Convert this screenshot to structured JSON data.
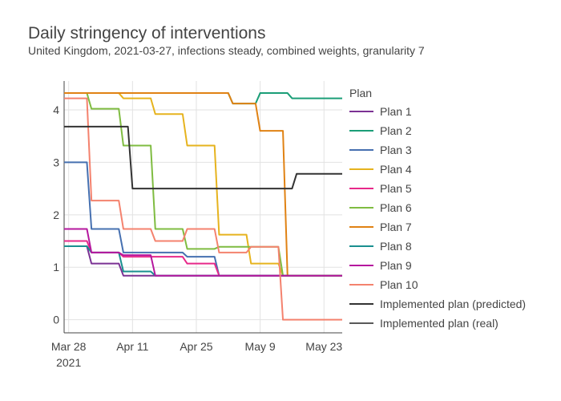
{
  "chart_data": {
    "type": "line",
    "title": "Daily stringency of interventions",
    "subtitle": "United Kingdom, 2021-03-27, infections steady, combined weights, granularity 7",
    "legend_title": "Plan",
    "legend_position": "right",
    "xlabel": "",
    "ylabel": "",
    "x_ticks": [
      {
        "date": "2021-03-28",
        "label": "Mar 28",
        "sublabel": "2021"
      },
      {
        "date": "2021-04-11",
        "label": "Apr 11",
        "sublabel": ""
      },
      {
        "date": "2021-04-25",
        "label": "Apr 25",
        "sublabel": ""
      },
      {
        "date": "2021-05-09",
        "label": "May 9",
        "sublabel": ""
      },
      {
        "date": "2021-05-23",
        "label": "May 23",
        "sublabel": ""
      }
    ],
    "xlim": [
      "2021-03-27",
      "2021-05-27"
    ],
    "y_ticks": [
      0,
      1,
      2,
      3,
      4
    ],
    "ylim": [
      -0.25,
      4.55
    ],
    "grid": true,
    "series": [
      {
        "name": "Plan 1",
        "color": "#7b3294",
        "points": [
          [
            "2021-03-27",
            1.4
          ],
          [
            "2021-04-01",
            1.4
          ],
          [
            "2021-04-02",
            1.07
          ],
          [
            "2021-04-08",
            1.07
          ],
          [
            "2021-04-09",
            0.84
          ],
          [
            "2021-04-15",
            0.84
          ],
          [
            "2021-04-16",
            0.84
          ],
          [
            "2021-05-27",
            0.84
          ]
        ]
      },
      {
        "name": "Plan 2",
        "color": "#1b9e77",
        "points": [
          [
            "2021-03-27",
            4.32
          ],
          [
            "2021-05-02",
            4.32
          ],
          [
            "2021-05-03",
            4.12
          ],
          [
            "2021-05-08",
            4.12
          ],
          [
            "2021-05-09",
            4.32
          ],
          [
            "2021-05-15",
            4.32
          ],
          [
            "2021-05-16",
            4.22
          ],
          [
            "2021-05-27",
            4.22
          ]
        ]
      },
      {
        "name": "Plan 3",
        "color": "#4670b0",
        "points": [
          [
            "2021-03-27",
            3.0
          ],
          [
            "2021-04-01",
            3.0
          ],
          [
            "2021-04-02",
            1.73
          ],
          [
            "2021-04-08",
            1.73
          ],
          [
            "2021-04-09",
            1.28
          ],
          [
            "2021-04-22",
            1.28
          ],
          [
            "2021-04-23",
            1.2
          ],
          [
            "2021-04-29",
            1.2
          ],
          [
            "2021-04-30",
            0.84
          ],
          [
            "2021-05-27",
            0.84
          ]
        ]
      },
      {
        "name": "Plan 4",
        "color": "#e6b31e",
        "points": [
          [
            "2021-03-27",
            4.32
          ],
          [
            "2021-04-08",
            4.32
          ],
          [
            "2021-04-09",
            4.22
          ],
          [
            "2021-04-15",
            4.22
          ],
          [
            "2021-04-16",
            3.92
          ],
          [
            "2021-04-22",
            3.92
          ],
          [
            "2021-04-23",
            3.32
          ],
          [
            "2021-04-29",
            3.32
          ],
          [
            "2021-04-30",
            1.62
          ],
          [
            "2021-05-06",
            1.62
          ],
          [
            "2021-05-07",
            1.07
          ],
          [
            "2021-05-13",
            1.07
          ],
          [
            "2021-05-14",
            0.84
          ],
          [
            "2021-05-27",
            0.84
          ]
        ]
      },
      {
        "name": "Plan 5",
        "color": "#e7298a",
        "points": [
          [
            "2021-03-27",
            1.5
          ],
          [
            "2021-04-01",
            1.5
          ],
          [
            "2021-04-02",
            1.28
          ],
          [
            "2021-04-08",
            1.28
          ],
          [
            "2021-04-09",
            1.2
          ],
          [
            "2021-04-22",
            1.2
          ],
          [
            "2021-04-23",
            1.07
          ],
          [
            "2021-04-29",
            1.07
          ],
          [
            "2021-04-30",
            0.84
          ],
          [
            "2021-05-27",
            0.84
          ]
        ]
      },
      {
        "name": "Plan 6",
        "color": "#7fbc41",
        "points": [
          [
            "2021-03-27",
            4.32
          ],
          [
            "2021-04-01",
            4.32
          ],
          [
            "2021-04-02",
            4.02
          ],
          [
            "2021-04-08",
            4.02
          ],
          [
            "2021-04-09",
            3.32
          ],
          [
            "2021-04-15",
            3.32
          ],
          [
            "2021-04-16",
            1.73
          ],
          [
            "2021-04-22",
            1.73
          ],
          [
            "2021-04-23",
            1.35
          ],
          [
            "2021-04-29",
            1.35
          ],
          [
            "2021-04-30",
            1.39
          ],
          [
            "2021-05-13",
            1.39
          ],
          [
            "2021-05-14",
            0.84
          ],
          [
            "2021-05-27",
            0.84
          ]
        ]
      },
      {
        "name": "Plan 7",
        "color": "#e08214",
        "points": [
          [
            "2021-03-27",
            4.32
          ],
          [
            "2021-05-02",
            4.32
          ],
          [
            "2021-05-03",
            4.12
          ],
          [
            "2021-05-08",
            4.12
          ],
          [
            "2021-05-09",
            3.6
          ],
          [
            "2021-05-14",
            3.6
          ],
          [
            "2021-05-15",
            0.84
          ],
          [
            "2021-05-27",
            0.84
          ]
        ]
      },
      {
        "name": "Plan 8",
        "color": "#1a8f8f",
        "points": [
          [
            "2021-03-27",
            1.4
          ],
          [
            "2021-04-01",
            1.4
          ],
          [
            "2021-04-02",
            1.28
          ],
          [
            "2021-04-08",
            1.28
          ],
          [
            "2021-04-09",
            0.92
          ],
          [
            "2021-04-15",
            0.92
          ],
          [
            "2021-04-16",
            0.84
          ],
          [
            "2021-05-27",
            0.84
          ]
        ]
      },
      {
        "name": "Plan 9",
        "color": "#b5179e",
        "points": [
          [
            "2021-03-27",
            1.73
          ],
          [
            "2021-04-01",
            1.73
          ],
          [
            "2021-04-02",
            1.28
          ],
          [
            "2021-04-08",
            1.28
          ],
          [
            "2021-04-09",
            1.23
          ],
          [
            "2021-04-15",
            1.23
          ],
          [
            "2021-04-16",
            0.84
          ],
          [
            "2021-05-27",
            0.84
          ]
        ]
      },
      {
        "name": "Plan 10",
        "color": "#f4826e",
        "points": [
          [
            "2021-03-27",
            4.22
          ],
          [
            "2021-04-01",
            4.22
          ],
          [
            "2021-04-02",
            2.27
          ],
          [
            "2021-04-08",
            2.27
          ],
          [
            "2021-04-09",
            1.73
          ],
          [
            "2021-04-15",
            1.73
          ],
          [
            "2021-04-16",
            1.5
          ],
          [
            "2021-04-22",
            1.5
          ],
          [
            "2021-04-23",
            1.73
          ],
          [
            "2021-04-29",
            1.73
          ],
          [
            "2021-04-30",
            1.28
          ],
          [
            "2021-05-06",
            1.28
          ],
          [
            "2021-05-07",
            1.39
          ],
          [
            "2021-05-13",
            1.39
          ],
          [
            "2021-05-14",
            0.0
          ],
          [
            "2021-05-27",
            0.0
          ]
        ]
      },
      {
        "name": "Implemented plan (predicted)",
        "color": "#333333",
        "points": [
          [
            "2021-03-27",
            3.68
          ],
          [
            "2021-04-10",
            3.68
          ],
          [
            "2021-04-11",
            2.5
          ],
          [
            "2021-05-16",
            2.5
          ],
          [
            "2021-05-17",
            2.78
          ],
          [
            "2021-05-27",
            2.78
          ]
        ]
      },
      {
        "name": "Implemented plan (real)",
        "color": "#595959",
        "points": []
      }
    ]
  }
}
